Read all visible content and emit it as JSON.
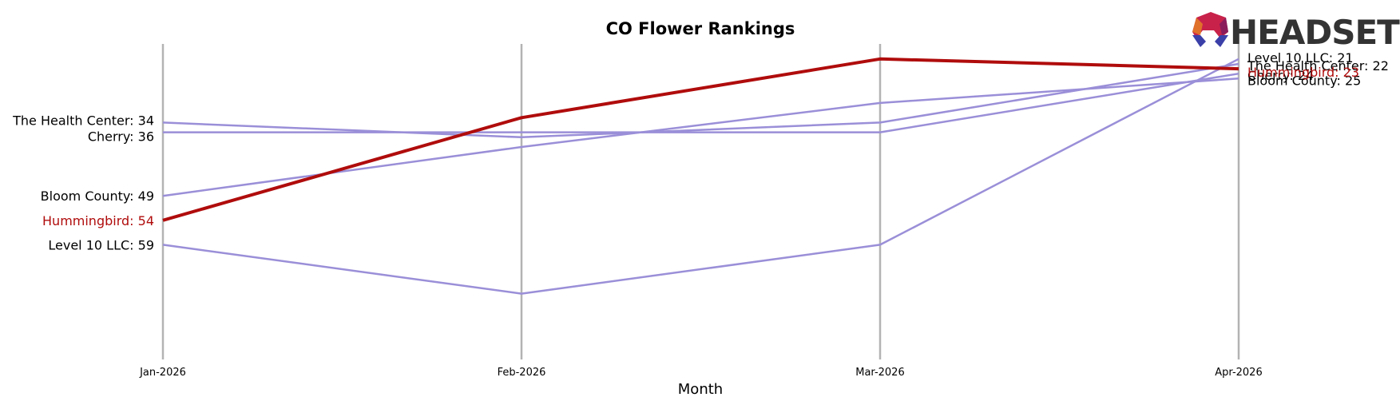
{
  "chart_data": {
    "type": "line",
    "title": "CO Flower Rankings",
    "xlabel": "Month",
    "ylabel": "",
    "categories": [
      "Jan-2026",
      "Feb-2026",
      "Mar-2026",
      "Apr-2026"
    ],
    "ylim": [
      65,
      20
    ],
    "y_inverted": true,
    "grid": "vertical",
    "legend": "none",
    "series": [
      {
        "name": "The Health Center",
        "values": [
          34,
          37,
          34,
          22
        ],
        "color": "#9a8fd8",
        "highlight": false
      },
      {
        "name": "Cherry",
        "values": [
          36,
          36,
          36,
          24
        ],
        "color": "#9a8fd8",
        "highlight": false
      },
      {
        "name": "Bloom County",
        "values": [
          49,
          39,
          30,
          25
        ],
        "color": "#9a8fd8",
        "highlight": false
      },
      {
        "name": "Hummingbird",
        "values": [
          54,
          33,
          21,
          23
        ],
        "color": "#b00c0c",
        "highlight": true
      },
      {
        "name": "Level 10 LLC",
        "values": [
          59,
          69,
          59,
          21
        ],
        "color": "#9a8fd8",
        "highlight": false
      }
    ]
  },
  "logo": {
    "text": "HEADSET",
    "colors": [
      "#e0712a",
      "#c8224a",
      "#8a1c5c",
      "#3b3fa8"
    ]
  }
}
